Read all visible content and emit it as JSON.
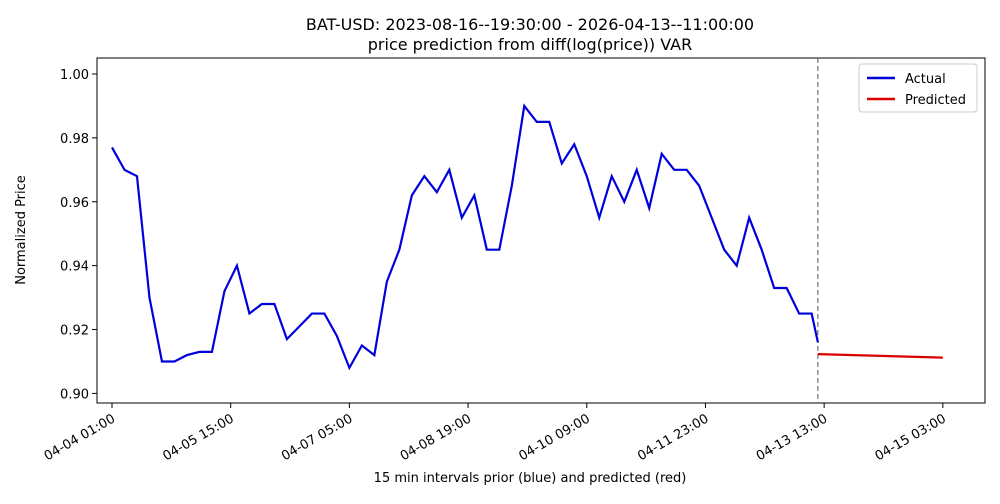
{
  "chart_data": {
    "type": "line",
    "title": "BAT-USD: 2023-08-16--19:30:00 - 2026-04-13--11:00:00",
    "subtitle": "price prediction from diff(log(price)) VAR",
    "xlabel": "15 min intervals prior (blue) and predicted (red)",
    "ylabel": "Normalized Price",
    "series": [
      {
        "name": "Actual",
        "color": "#0000dd",
        "x": [
          "04-04 01:00",
          "04-04 05:00",
          "04-04 09:00",
          "04-04 13:00",
          "04-04 17:00",
          "04-04 21:00",
          "04-05 01:00",
          "04-05 05:00",
          "04-05 09:00",
          "04-05 13:00",
          "04-05 17:00",
          "04-05 21:00",
          "04-06 01:00",
          "04-06 05:00",
          "04-06 09:00",
          "04-06 13:00",
          "04-06 17:00",
          "04-06 21:00",
          "04-07 01:00",
          "04-07 05:00",
          "04-07 09:00",
          "04-07 13:00",
          "04-07 17:00",
          "04-07 21:00",
          "04-08 01:00",
          "04-08 05:00",
          "04-08 09:00",
          "04-08 13:00",
          "04-08 17:00",
          "04-08 21:00",
          "04-09 01:00",
          "04-09 05:00",
          "04-09 09:00",
          "04-09 13:00",
          "04-09 17:00",
          "04-09 21:00",
          "04-10 01:00",
          "04-10 05:00",
          "04-10 09:00",
          "04-10 13:00",
          "04-10 17:00",
          "04-10 21:00",
          "04-11 01:00",
          "04-11 05:00",
          "04-11 09:00",
          "04-11 13:00",
          "04-11 17:00",
          "04-11 21:00",
          "04-12 01:00",
          "04-12 05:00",
          "04-12 09:00",
          "04-12 13:00",
          "04-12 17:00",
          "04-12 21:00",
          "04-13 01:00",
          "04-13 05:00",
          "04-13 09:00",
          "04-13 11:00"
        ],
        "values": [
          0.977,
          0.97,
          0.968,
          0.93,
          0.91,
          0.91,
          0.912,
          0.913,
          0.913,
          0.932,
          0.94,
          0.925,
          0.928,
          0.928,
          0.917,
          0.921,
          0.925,
          0.925,
          0.918,
          0.908,
          0.915,
          0.912,
          0.935,
          0.945,
          0.962,
          0.968,
          0.963,
          0.97,
          0.955,
          0.962,
          0.945,
          0.945,
          0.965,
          0.99,
          0.985,
          0.985,
          0.972,
          0.978,
          0.968,
          0.955,
          0.968,
          0.96,
          0.97,
          0.958,
          0.975,
          0.97,
          0.97,
          0.965,
          0.955,
          0.945,
          0.94,
          0.955,
          0.945,
          0.933,
          0.933,
          0.925,
          0.925,
          0.916
        ]
      },
      {
        "name": "Predicted",
        "color": "#dd0000",
        "x": [
          "04-13 11:00",
          "04-15 03:00"
        ],
        "values": [
          0.9123,
          0.9112
        ]
      }
    ],
    "vline": "04-13 11:00",
    "xlim": [
      "04-03 20:12",
      "04-15 16:30"
    ],
    "xticks": [
      "04-04 01:00",
      "04-05 15:00",
      "04-07 05:00",
      "04-08 19:00",
      "04-10 09:00",
      "04-11 23:00",
      "04-13 13:00",
      "04-15 03:00"
    ],
    "ylim": [
      0.897,
      1.005
    ],
    "yticks": [
      {
        "value": 0.9,
        "label": "0.90"
      },
      {
        "value": 0.92,
        "label": "0.92"
      },
      {
        "value": 0.94,
        "label": "0.94"
      },
      {
        "value": 0.96,
        "label": "0.96"
      },
      {
        "value": 0.98,
        "label": "0.98"
      },
      {
        "value": 1.0,
        "label": "1.00"
      }
    ],
    "legend": "upper right"
  }
}
